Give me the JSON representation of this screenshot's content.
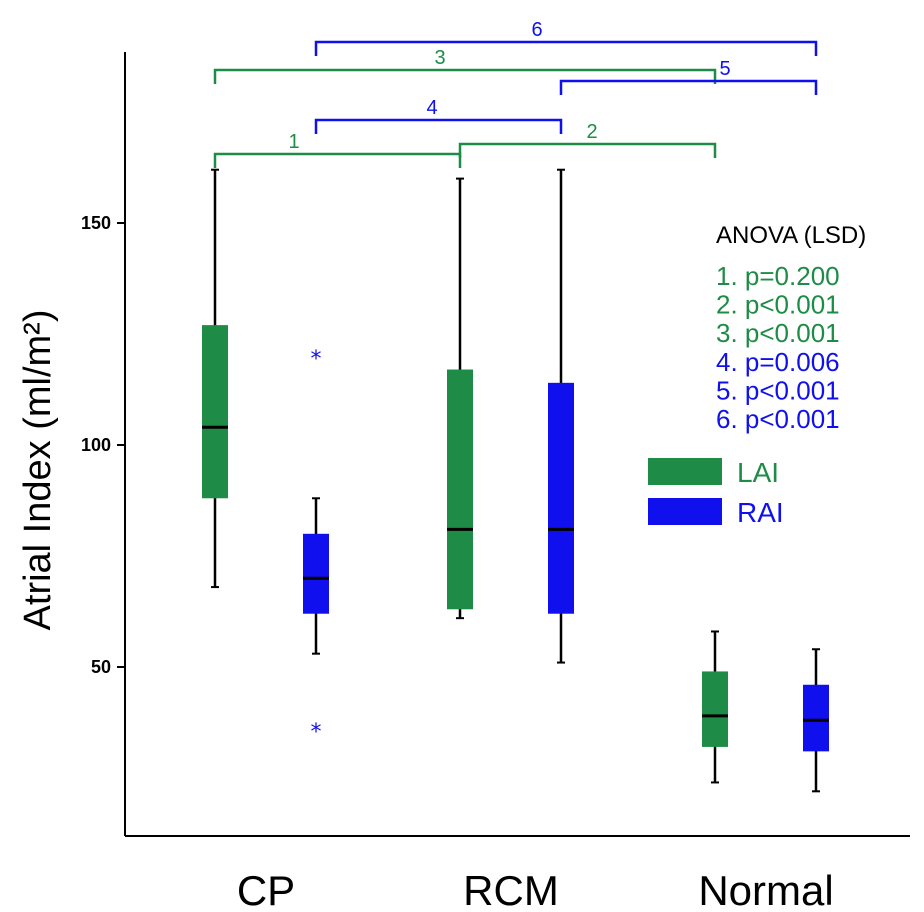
{
  "chart_data": {
    "type": "box",
    "ylabel": "Atrial Index (ml/m²)",
    "yticks": [
      50,
      100,
      150
    ],
    "categories": [
      "CP",
      "RCM",
      "Normal"
    ],
    "colors": {
      "LAI": "#1e8c46",
      "RAI": "#1010ee"
    },
    "series": [
      {
        "name": "LAI",
        "color": "#1e8c46",
        "boxes": [
          {
            "category": "CP",
            "min": 68,
            "q1": 88,
            "median": 104,
            "q3": 127,
            "max": 162,
            "outliers": []
          },
          {
            "category": "RCM",
            "min": 61,
            "q1": 63,
            "median": 81,
            "q3": 117,
            "max": 160,
            "outliers": []
          },
          {
            "category": "Normal",
            "min": 24,
            "q1": 32,
            "median": 39,
            "q3": 49,
            "max": 58,
            "outliers": []
          }
        ]
      },
      {
        "name": "RAI",
        "color": "#1010ee",
        "boxes": [
          {
            "category": "CP",
            "min": 53,
            "q1": 62,
            "median": 70,
            "q3": 80,
            "max": 88,
            "outliers": [
              120,
              36
            ]
          },
          {
            "category": "RCM",
            "min": 51,
            "q1": 62,
            "median": 81,
            "q3": 114,
            "max": 162,
            "outliers": []
          },
          {
            "category": "Normal",
            "min": 22,
            "q1": 31,
            "median": 38,
            "q3": 46,
            "max": 54,
            "outliers": []
          }
        ]
      }
    ],
    "legend": {
      "placement": "right",
      "entries": [
        {
          "label": "LAI",
          "color": "#1e8c46"
        },
        {
          "label": "RAI",
          "color": "#1010ee"
        }
      ]
    },
    "comparisons": [
      {
        "label": "1",
        "from": "CP-LAI",
        "to": "RCM-LAI",
        "color": "#1e8c46"
      },
      {
        "label": "2",
        "from": "RCM-LAI",
        "to": "Normal-LAI",
        "color": "#1e8c46"
      },
      {
        "label": "3",
        "from": "CP-LAI",
        "to": "Normal-LAI",
        "color": "#1e8c46"
      },
      {
        "label": "4",
        "from": "CP-RAI",
        "to": "RCM-RAI",
        "color": "#1010ee"
      },
      {
        "label": "5",
        "from": "RCM-RAI",
        "to": "Normal-RAI",
        "color": "#1010ee"
      },
      {
        "label": "6",
        "from": "CP-RAI",
        "to": "Normal-RAI",
        "color": "#1010ee"
      }
    ],
    "annotation": {
      "title": "ANOVA (LSD)",
      "lines": [
        {
          "text": "1. p=0.200",
          "color": "#1e8c46"
        },
        {
          "text": "2. p<0.001",
          "color": "#1e8c46"
        },
        {
          "text": "3. p<0.001",
          "color": "#1e8c46"
        },
        {
          "text": "4. p=0.006",
          "color": "#1010ee"
        },
        {
          "text": "5. p<0.001",
          "color": "#1010ee"
        },
        {
          "text": "6. p<0.001",
          "color": "#1010ee"
        }
      ]
    }
  }
}
